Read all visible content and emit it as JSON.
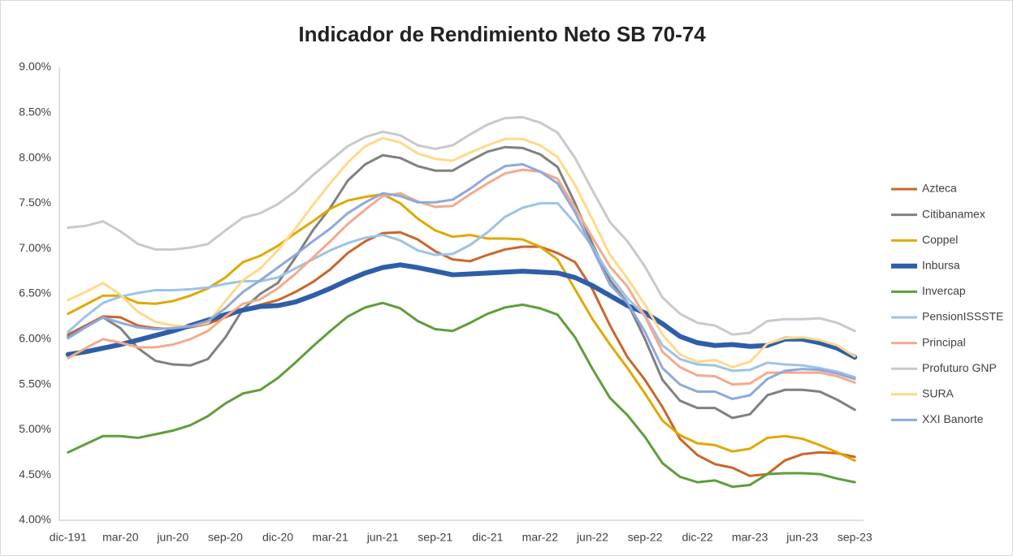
{
  "chart_data": {
    "type": "line",
    "title": "Indicador de Rendimiento Neto SB 70-74",
    "categories": [
      "dic-191",
      null,
      null,
      "mar-20",
      null,
      null,
      "jun-20",
      null,
      null,
      "sep-20",
      null,
      null,
      "dic-20",
      null,
      null,
      "mar-21",
      null,
      null,
      "jun-21",
      null,
      null,
      "sep-21",
      null,
      null,
      "dic-21",
      null,
      null,
      "mar-22",
      null,
      null,
      "jun-22",
      null,
      null,
      "sep-22",
      null,
      null,
      "dic-22",
      null,
      null,
      "mar-23",
      null,
      null,
      "jun-23",
      null,
      null,
      "sep-23"
    ],
    "ylim": [
      4,
      9
    ],
    "yticks": [
      {
        "value": 4,
        "label": "4.00%"
      },
      {
        "value": 4.5,
        "label": "4.50%"
      },
      {
        "value": 5,
        "label": "5.00%"
      },
      {
        "value": 5.5,
        "label": "5.50%"
      },
      {
        "value": 6,
        "label": "6.00%"
      },
      {
        "value": 6.5,
        "label": "6.50%"
      },
      {
        "value": 7,
        "label": "7.00%"
      },
      {
        "value": 7.5,
        "label": "7.50%"
      },
      {
        "value": 8,
        "label": "8.00%"
      },
      {
        "value": 8.5,
        "label": "8.50%"
      },
      {
        "value": 9,
        "label": "9.00%"
      }
    ],
    "grid": false,
    "legend": "right",
    "series": [
      {
        "name": "Azteca",
        "color": "#c9662a",
        "line_width": 3,
        "values": [
          6.05,
          6.15,
          6.25,
          6.24,
          6.15,
          6.12,
          6.11,
          6.13,
          6.17,
          6.24,
          6.32,
          6.38,
          6.43,
          6.52,
          6.63,
          6.77,
          6.95,
          7.08,
          7.17,
          7.18,
          7.1,
          6.97,
          6.88,
          6.86,
          6.93,
          6.99,
          7.02,
          7.02,
          6.95,
          6.85,
          6.55,
          6.15,
          5.8,
          5.55,
          5.25,
          4.9,
          4.72,
          4.62,
          4.58,
          4.49,
          4.51,
          4.66,
          4.73,
          4.75,
          4.74,
          4.7
        ]
      },
      {
        "name": "Citibanamex",
        "color": "#808080",
        "line_width": 3,
        "values": [
          6.03,
          6.14,
          6.24,
          6.12,
          5.9,
          5.76,
          5.72,
          5.71,
          5.78,
          6.02,
          6.33,
          6.5,
          6.62,
          6.9,
          7.2,
          7.45,
          7.75,
          7.93,
          8.03,
          8.0,
          7.91,
          7.86,
          7.86,
          7.97,
          8.07,
          8.12,
          8.11,
          8.04,
          7.9,
          7.5,
          7.05,
          6.65,
          6.4,
          6.0,
          5.55,
          5.32,
          5.24,
          5.24,
          5.13,
          5.17,
          5.38,
          5.44,
          5.44,
          5.42,
          5.33,
          5.22
        ]
      },
      {
        "name": "Coppel",
        "color": "#e0a800",
        "line_width": 3,
        "values": [
          6.28,
          6.38,
          6.48,
          6.48,
          6.4,
          6.39,
          6.42,
          6.48,
          6.56,
          6.68,
          6.85,
          6.92,
          7.03,
          7.17,
          7.3,
          7.44,
          7.53,
          7.57,
          7.6,
          7.5,
          7.33,
          7.2,
          7.13,
          7.15,
          7.11,
          7.11,
          7.1,
          7.02,
          6.88,
          6.55,
          6.22,
          5.94,
          5.68,
          5.4,
          5.1,
          4.94,
          4.85,
          4.83,
          4.76,
          4.79,
          4.91,
          4.93,
          4.9,
          4.83,
          4.75,
          4.66
        ]
      },
      {
        "name": "Inbursa",
        "color": "#2f5ea8",
        "line_width": 6,
        "values": [
          5.83,
          5.86,
          5.9,
          5.94,
          5.99,
          6.04,
          6.09,
          6.15,
          6.21,
          6.27,
          6.32,
          6.36,
          6.37,
          6.41,
          6.48,
          6.56,
          6.65,
          6.73,
          6.79,
          6.82,
          6.79,
          6.75,
          6.71,
          6.72,
          6.73,
          6.74,
          6.75,
          6.74,
          6.73,
          6.68,
          6.59,
          6.48,
          6.37,
          6.29,
          6.17,
          6.03,
          5.96,
          5.93,
          5.94,
          5.92,
          5.93,
          6.0,
          6.0,
          5.96,
          5.9,
          5.8
        ]
      },
      {
        "name": "Invercap",
        "color": "#5e9e3a",
        "line_width": 3,
        "values": [
          4.75,
          4.84,
          4.93,
          4.93,
          4.91,
          4.95,
          4.99,
          5.05,
          5.15,
          5.29,
          5.4,
          5.44,
          5.57,
          5.74,
          5.92,
          6.09,
          6.25,
          6.35,
          6.4,
          6.34,
          6.2,
          6.11,
          6.09,
          6.18,
          6.28,
          6.35,
          6.38,
          6.34,
          6.27,
          6.02,
          5.67,
          5.35,
          5.16,
          4.92,
          4.63,
          4.48,
          4.42,
          4.44,
          4.37,
          4.39,
          4.51,
          4.52,
          4.52,
          4.51,
          4.46,
          4.42
        ]
      },
      {
        "name": "PensionISSSTE",
        "color": "#9dc3e6",
        "line_width": 3,
        "values": [
          6.08,
          6.25,
          6.4,
          6.47,
          6.51,
          6.54,
          6.54,
          6.55,
          6.57,
          6.61,
          6.64,
          6.64,
          6.68,
          6.78,
          6.88,
          6.98,
          7.06,
          7.12,
          7.15,
          7.09,
          6.98,
          6.93,
          6.94,
          7.04,
          7.18,
          7.35,
          7.45,
          7.5,
          7.5,
          7.28,
          7.02,
          6.7,
          6.45,
          6.26,
          5.93,
          5.78,
          5.72,
          5.71,
          5.65,
          5.66,
          5.74,
          5.72,
          5.71,
          5.68,
          5.64,
          5.58
        ]
      },
      {
        "name": "Principal",
        "color": "#f4aa8a",
        "line_width": 3,
        "values": [
          5.79,
          5.9,
          6.0,
          5.96,
          5.91,
          5.91,
          5.94,
          6.0,
          6.09,
          6.25,
          6.39,
          6.44,
          6.56,
          6.72,
          6.9,
          7.08,
          7.27,
          7.43,
          7.58,
          7.61,
          7.52,
          7.46,
          7.47,
          7.6,
          7.72,
          7.83,
          7.87,
          7.85,
          7.77,
          7.45,
          7.12,
          6.8,
          6.58,
          6.25,
          5.86,
          5.69,
          5.6,
          5.59,
          5.5,
          5.51,
          5.63,
          5.63,
          5.63,
          5.63,
          5.59,
          5.52
        ]
      },
      {
        "name": "Profuturo GNP",
        "color": "#c9c9c9",
        "line_width": 3,
        "values": [
          7.23,
          7.25,
          7.3,
          7.19,
          7.05,
          6.99,
          6.99,
          7.01,
          7.05,
          7.2,
          7.34,
          7.39,
          7.49,
          7.63,
          7.81,
          7.97,
          8.13,
          8.23,
          8.29,
          8.25,
          8.14,
          8.1,
          8.14,
          8.26,
          8.37,
          8.44,
          8.45,
          8.39,
          8.28,
          8.0,
          7.64,
          7.29,
          7.08,
          6.8,
          6.46,
          6.28,
          6.18,
          6.15,
          6.05,
          6.07,
          6.2,
          6.22,
          6.22,
          6.23,
          6.18,
          6.09
        ]
      },
      {
        "name": "SURA",
        "color": "#ffd98a",
        "line_width": 3,
        "values": [
          6.43,
          6.52,
          6.62,
          6.49,
          6.3,
          6.19,
          6.15,
          6.14,
          6.18,
          6.42,
          6.65,
          6.78,
          6.98,
          7.22,
          7.48,
          7.72,
          7.95,
          8.13,
          8.22,
          8.17,
          8.05,
          7.99,
          7.97,
          8.06,
          8.14,
          8.21,
          8.21,
          8.14,
          8.01,
          7.7,
          7.32,
          6.93,
          6.67,
          6.38,
          6.05,
          5.83,
          5.75,
          5.77,
          5.69,
          5.75,
          5.95,
          6.01,
          6.02,
          5.99,
          5.93,
          5.81
        ]
      },
      {
        "name": "XXI Banorte",
        "color": "#8ea9db",
        "line_width": 3,
        "values": [
          6.01,
          6.13,
          6.24,
          6.18,
          6.13,
          6.11,
          6.12,
          6.14,
          6.2,
          6.34,
          6.52,
          6.65,
          6.79,
          6.93,
          7.08,
          7.22,
          7.39,
          7.51,
          7.61,
          7.58,
          7.51,
          7.51,
          7.54,
          7.66,
          7.8,
          7.91,
          7.93,
          7.85,
          7.72,
          7.4,
          7.0,
          6.6,
          6.4,
          6.08,
          5.68,
          5.5,
          5.42,
          5.42,
          5.34,
          5.38,
          5.56,
          5.65,
          5.67,
          5.66,
          5.62,
          5.56
        ]
      }
    ]
  }
}
